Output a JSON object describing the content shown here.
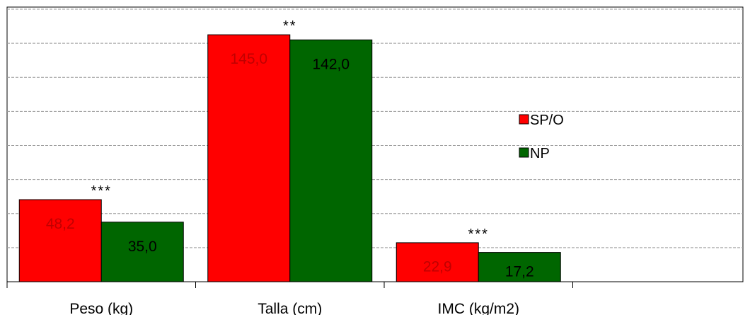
{
  "chart_data": {
    "type": "bar",
    "categories": [
      "Peso (kg)",
      "Talla (cm)",
      "IMC (kg/m2)"
    ],
    "series": [
      {
        "name": "SP/O",
        "color": "#ff0000",
        "values": [
          48.2,
          145.0,
          22.9
        ],
        "labels": [
          "48,2",
          "145,0",
          "22,9"
        ]
      },
      {
        "name": "NP",
        "color": "#006600",
        "values": [
          35.0,
          142.0,
          17.2
        ],
        "labels": [
          "35,0",
          "142,0",
          "17,2"
        ]
      }
    ],
    "significance": [
      "***",
      "**",
      "***"
    ],
    "ylim": [
      0,
      160
    ],
    "gridlines": [
      20,
      40,
      60,
      80,
      100,
      120,
      140,
      160
    ],
    "grid": true,
    "legend_position": "right"
  }
}
